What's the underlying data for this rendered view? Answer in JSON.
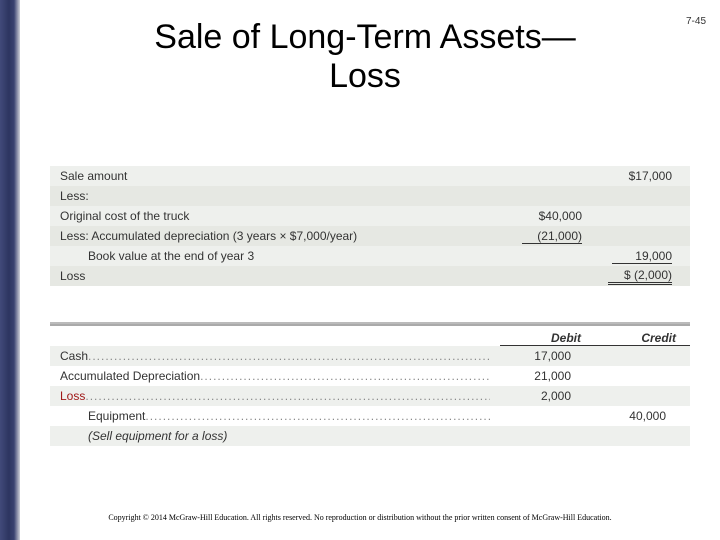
{
  "slide_number": "7-45",
  "title": "Sale of Long-Term Assets—\nLoss",
  "calc": {
    "background_color": "#eef0ed",
    "alt_background_color": "#e6e8e3",
    "text_color": "#333333",
    "font_size_pt": 12,
    "rows": [
      {
        "label": "Sale amount",
        "col1": "",
        "col2": "$17,000"
      },
      {
        "label": "Less:",
        "col1": "",
        "col2": ""
      },
      {
        "label": "Original cost of the truck",
        "col1": "$40,000",
        "col2": ""
      },
      {
        "label": "Less: Accumulated depreciation (3 years × $7,000/year)",
        "col1": "(21,000)",
        "col2": "",
        "col1_underline": true
      },
      {
        "label": "Book value at the end of year 3",
        "indent": 2,
        "col1": "",
        "col2": "19,000",
        "col2_underline": true
      },
      {
        "label": "Loss",
        "col1": "",
        "col2": "$ (2,000)",
        "col2_double": true
      }
    ]
  },
  "journal": {
    "header": {
      "debit": "Debit",
      "credit": "Credit"
    },
    "font_size_pt": 12,
    "rows": [
      {
        "label": "Cash",
        "debit": "17,000",
        "credit": ""
      },
      {
        "label": "Accumulated Depreciation",
        "debit": "21,000",
        "credit": ""
      },
      {
        "label": "Loss",
        "debit": "2,000",
        "credit": "",
        "red": true
      },
      {
        "label": "Equipment",
        "indent": 2,
        "debit": "",
        "credit": "40,000"
      },
      {
        "label": "(Sell equipment for a loss)",
        "indent": 2,
        "italic": true,
        "debit": "",
        "credit": ""
      }
    ]
  },
  "copyright": "Copyright © 2014 McGraw-Hill Education. All rights reserved. No reproduction or distribution without the prior written consent of McGraw-Hill Education."
}
